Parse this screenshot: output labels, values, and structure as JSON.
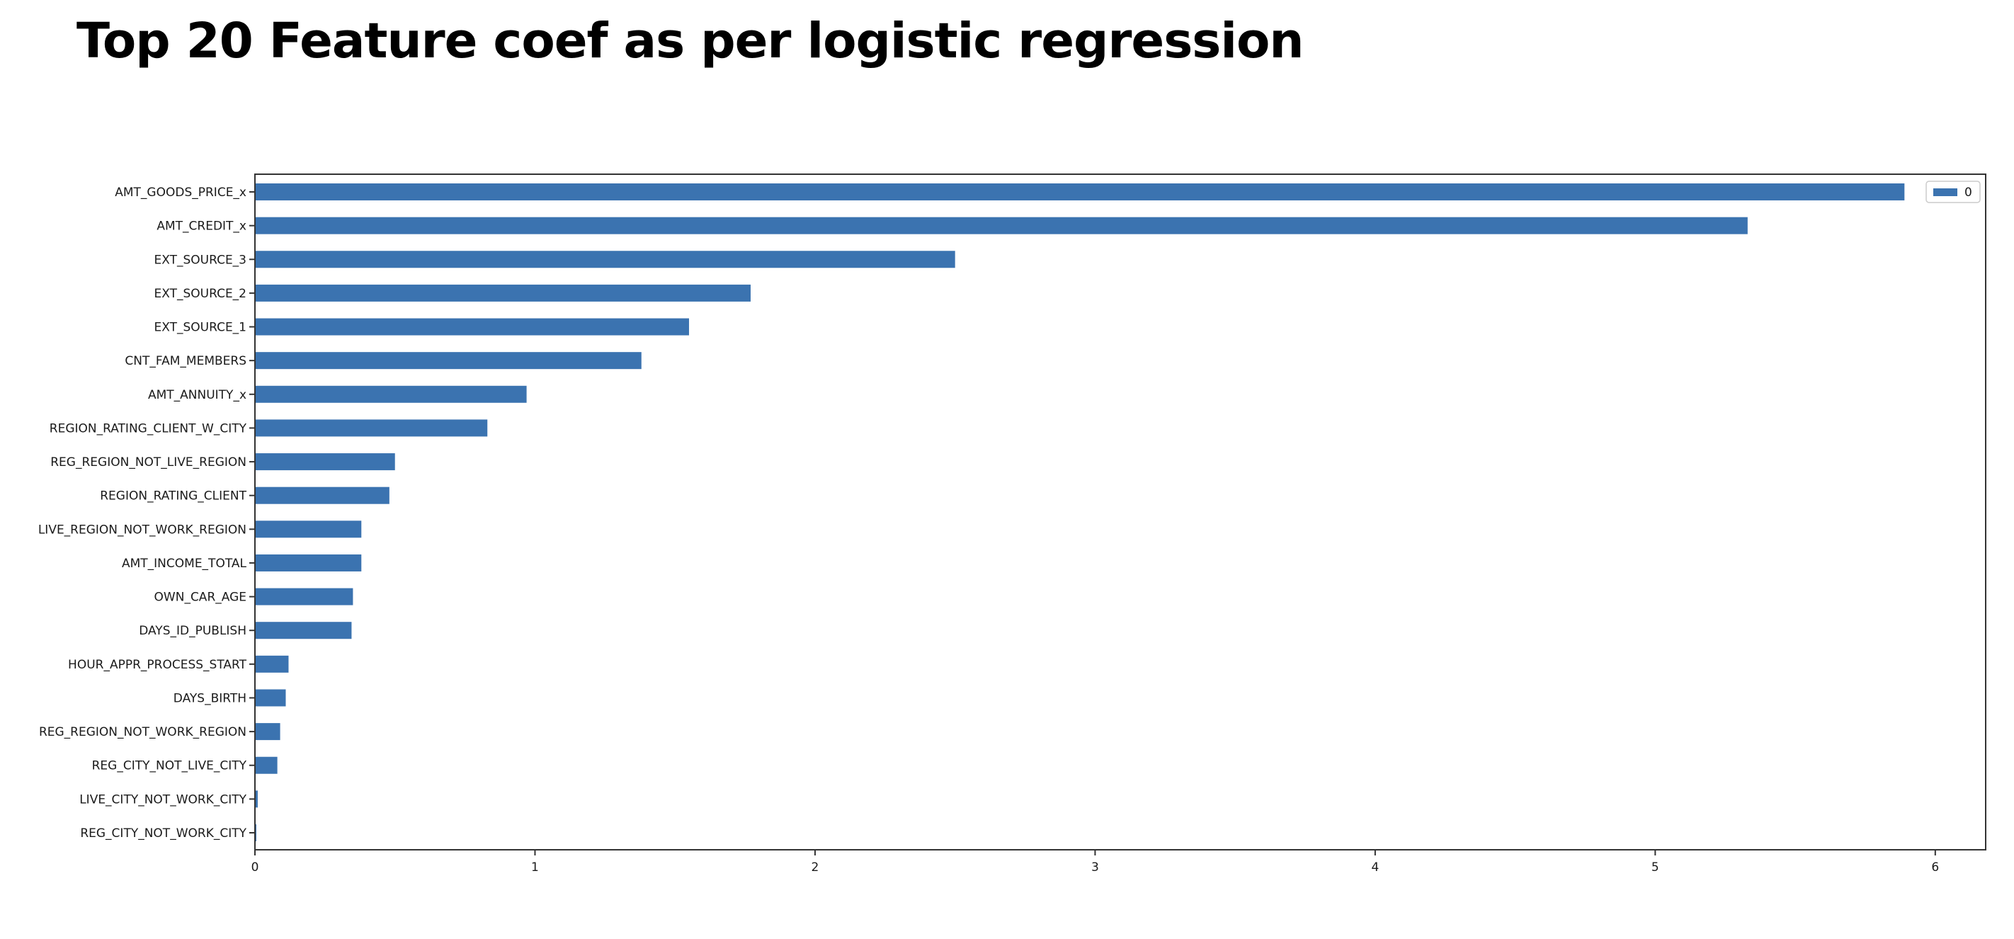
{
  "page": {
    "title": "Top 20 Feature coef as per logistic regression"
  },
  "chart_data": {
    "type": "bar",
    "orientation": "horizontal",
    "categories": [
      "AMT_GOODS_PRICE_x",
      "AMT_CREDIT_x",
      "EXT_SOURCE_3",
      "EXT_SOURCE_2",
      "EXT_SOURCE_1",
      "CNT_FAM_MEMBERS",
      "AMT_ANNUITY_x",
      "REGION_RATING_CLIENT_W_CITY",
      "REG_REGION_NOT_LIVE_REGION",
      "REGION_RATING_CLIENT",
      "LIVE_REGION_NOT_WORK_REGION",
      "AMT_INCOME_TOTAL",
      "OWN_CAR_AGE",
      "DAYS_ID_PUBLISH",
      "HOUR_APPR_PROCESS_START",
      "DAYS_BIRTH",
      "REG_REGION_NOT_WORK_REGION",
      "REG_CITY_NOT_LIVE_CITY",
      "LIVE_CITY_NOT_WORK_CITY",
      "REG_CITY_NOT_WORK_CITY"
    ],
    "series": [
      {
        "name": "0",
        "values": [
          5.89,
          5.33,
          2.5,
          1.77,
          1.55,
          1.38,
          0.97,
          0.83,
          0.5,
          0.48,
          0.38,
          0.38,
          0.35,
          0.345,
          0.12,
          0.11,
          0.09,
          0.08,
          0.01,
          0.005
        ]
      }
    ],
    "xlim": [
      0,
      6.18
    ],
    "xticks": [
      0,
      1,
      2,
      3,
      4,
      5,
      6
    ],
    "bar_color": "#3b73b0",
    "grid": false,
    "legend": "top-right"
  }
}
